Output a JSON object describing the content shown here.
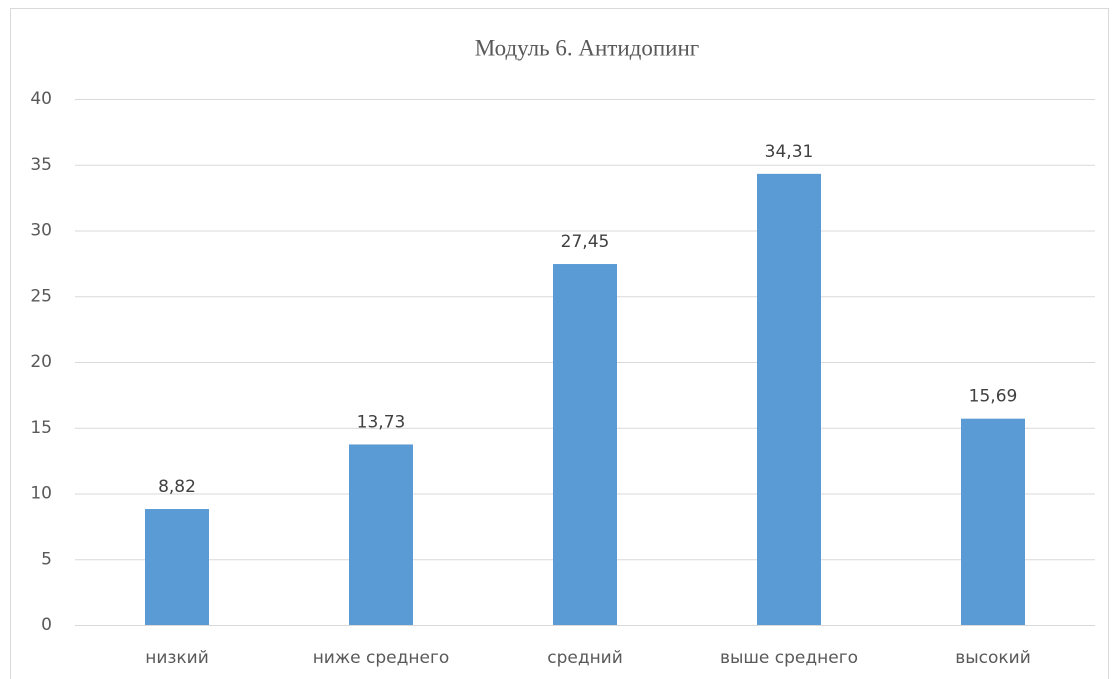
{
  "chart_data": {
    "type": "bar",
    "title": "Модуль 6. Антидопинг",
    "categories": [
      "низкий",
      "ниже среднего",
      "средний",
      "выше среднего",
      "высокий"
    ],
    "values": [
      8.82,
      13.73,
      27.45,
      34.31,
      15.69
    ],
    "value_labels": [
      "8,82",
      "13,73",
      "27,45",
      "34,31",
      "15,69"
    ],
    "color": "#5b9bd5",
    "ylim": [
      0,
      40
    ],
    "yticks": [
      0,
      5,
      10,
      15,
      20,
      25,
      30,
      35,
      40
    ],
    "grid": true
  }
}
